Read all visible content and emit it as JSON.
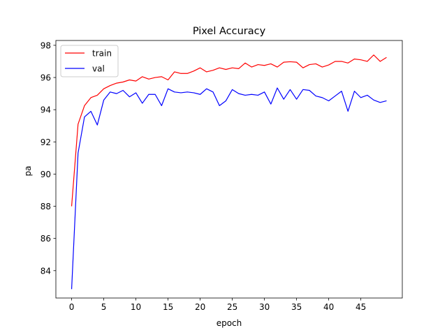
{
  "chart_data": {
    "type": "line",
    "title": "Pixel Accuracy",
    "xlabel": "epoch",
    "ylabel": "pa",
    "xlim": [
      -2.45,
      51.45
    ],
    "ylim": [
      82.3,
      98.3
    ],
    "xticks": [
      0,
      5,
      10,
      15,
      20,
      25,
      30,
      35,
      40,
      45
    ],
    "yticks": [
      84,
      86,
      88,
      90,
      92,
      94,
      96,
      98
    ],
    "grid": false,
    "legend_position": "top-left",
    "x": [
      0,
      1,
      2,
      3,
      4,
      5,
      6,
      7,
      8,
      9,
      10,
      11,
      12,
      13,
      14,
      15,
      16,
      17,
      18,
      19,
      20,
      21,
      22,
      23,
      24,
      25,
      26,
      27,
      28,
      29,
      30,
      31,
      32,
      33,
      34,
      35,
      36,
      37,
      38,
      39,
      40,
      41,
      42,
      43,
      44,
      45,
      46,
      47,
      48,
      49
    ],
    "series": [
      {
        "name": "train",
        "color": "#ff0000",
        "values": [
          88.0,
          93.1,
          94.25,
          94.75,
          94.9,
          95.3,
          95.5,
          95.65,
          95.72,
          95.85,
          95.78,
          96.05,
          95.9,
          96.0,
          96.05,
          95.85,
          96.35,
          96.25,
          96.25,
          96.4,
          96.6,
          96.35,
          96.45,
          96.6,
          96.5,
          96.6,
          96.55,
          96.9,
          96.65,
          96.8,
          96.75,
          96.85,
          96.65,
          96.95,
          96.98,
          96.95,
          96.6,
          96.8,
          96.85,
          96.65,
          96.78,
          97.0,
          97.0,
          96.9,
          97.15,
          97.1,
          97.0,
          97.4,
          97.0,
          97.25
        ]
      },
      {
        "name": "val",
        "color": "#0000ff",
        "values": [
          82.85,
          91.3,
          93.55,
          93.9,
          93.05,
          94.6,
          95.1,
          95.0,
          95.2,
          94.8,
          95.05,
          94.4,
          94.95,
          94.95,
          94.25,
          95.3,
          95.1,
          95.05,
          95.1,
          95.05,
          94.95,
          95.3,
          95.1,
          94.25,
          94.55,
          95.25,
          95.0,
          94.9,
          94.95,
          94.9,
          95.1,
          94.35,
          95.35,
          94.65,
          95.25,
          94.65,
          95.25,
          95.2,
          94.85,
          94.75,
          94.55,
          94.85,
          95.15,
          93.9,
          95.15,
          94.75,
          94.9,
          94.6,
          94.45,
          94.55
        ]
      }
    ]
  }
}
